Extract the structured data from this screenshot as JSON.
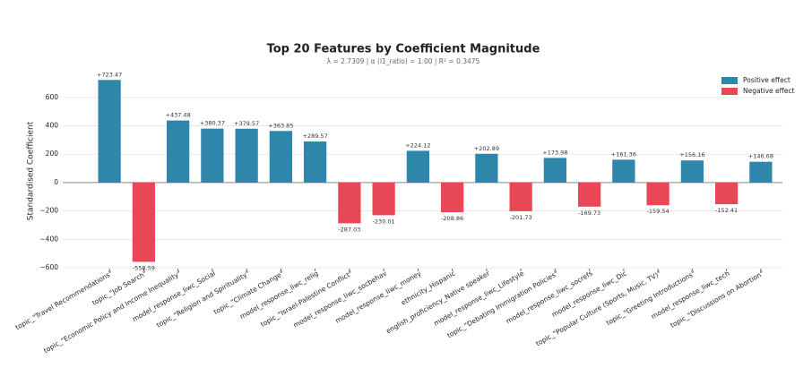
{
  "chart_data": {
    "type": "bar",
    "title": "Top 20 Features by Coefficient Magnitude",
    "subtitle": "λ = 2.7309   |   α (l1_ratio) = 1.00   |   R² = 0.3475",
    "y_label": "Standardised Coefficient",
    "categories": [
      "topic_\"Travel Recommendations\"",
      "topic_\"Job Search\"",
      "topic_\"Economic Policy and Income Inequality\"",
      "model_response_liwc_Social",
      "topic_\"Religion and Spirituality\"",
      "topic_\"Climate Change\"",
      "model_response_liwc_relig",
      "topic_\"Israel-Palestine Conflict\"",
      "model_response_liwc_socbehav",
      "model_response_liwc_money",
      "ethnicity_Hispanic",
      "english_proficiency_Native speaker",
      "model_response_liwc_Lifestyle",
      "topic_\"Debating Immigration Policies\"",
      "model_response_liwc_socrefs",
      "model_response_liwc_Dic",
      "topic_\"Popular Culture (Sports, Music, TV)\"",
      "topic_\"Greeting Introductions\"",
      "model_response_liwc_tech",
      "topic_\"Discussions on Abortion\""
    ],
    "values": [
      723.47,
      -558.59,
      437.48,
      380.37,
      379.57,
      363.85,
      289.57,
      -287.03,
      -230.01,
      224.12,
      -208.86,
      202.89,
      -201.73,
      173.98,
      -169.73,
      161.36,
      -159.54,
      156.16,
      -152.41,
      146.68
    ],
    "value_labels": [
      "+723.47",
      "-558.59",
      "+437.48",
      "+380.37",
      "+379.57",
      "+363.85",
      "+289.57",
      "-287.03",
      "-230.01",
      "+224.12",
      "-208.86",
      "+202.89",
      "-201.73",
      "+173.98",
      "-169.73",
      "+161.36",
      "-159.54",
      "+156.16",
      "-152.41",
      "+146.68"
    ],
    "legend": [
      {
        "name": "Positive effect",
        "color": "#2e86ab"
      },
      {
        "name": "Negative effect",
        "color": "#e84855"
      }
    ],
    "ylim": [
      -600,
      760
    ],
    "yticks": [
      {
        "value": -600,
        "label": "−600"
      },
      {
        "value": -400,
        "label": "−400"
      },
      {
        "value": -200,
        "label": "−200"
      },
      0,
      200,
      400,
      600
    ],
    "grid": true
  }
}
